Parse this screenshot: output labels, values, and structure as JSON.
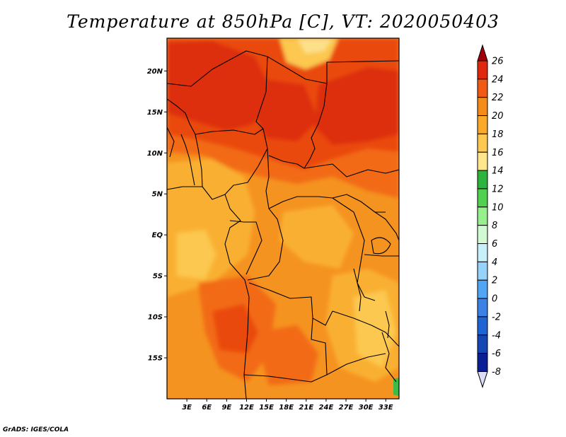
{
  "title": "Temperature at 850hPa [C], VT: 2020050403",
  "credit": "GrADS: IGES/COLA",
  "map": {
    "variable": "Temperature at 850hPa",
    "units": "C",
    "valid_time": "2020050403",
    "region": "Central Africa",
    "lon_range": [
      0,
      35
    ],
    "lat_range": [
      -20,
      24
    ],
    "lat_ticks": [
      {
        "value": 20,
        "label": "20N"
      },
      {
        "value": 15,
        "label": "15N"
      },
      {
        "value": 10,
        "label": "10N"
      },
      {
        "value": 5,
        "label": "5N"
      },
      {
        "value": 0,
        "label": "EQ"
      },
      {
        "value": -5,
        "label": "5S"
      },
      {
        "value": -10,
        "label": "10S"
      },
      {
        "value": -15,
        "label": "15S"
      }
    ],
    "lon_ticks": [
      {
        "value": 3,
        "label": "3E"
      },
      {
        "value": 6,
        "label": "6E"
      },
      {
        "value": 9,
        "label": "9E"
      },
      {
        "value": 12,
        "label": "12E"
      },
      {
        "value": 15,
        "label": "15E"
      },
      {
        "value": 18,
        "label": "18E"
      },
      {
        "value": 21,
        "label": "21E"
      },
      {
        "value": 24,
        "label": "24E"
      },
      {
        "value": 27,
        "label": "27E"
      },
      {
        "value": 30,
        "label": "30E"
      },
      {
        "value": 33,
        "label": "33E"
      }
    ]
  },
  "colorbar": {
    "min_label": "-8",
    "max_label": "26",
    "levels": [
      {
        "label": "26",
        "color": "#a0000a"
      },
      {
        "label": "24",
        "color": "#e1280f"
      },
      {
        "label": "22",
        "color": "#f05a14"
      },
      {
        "label": "20",
        "color": "#f58c19"
      },
      {
        "label": "18",
        "color": "#faaa28"
      },
      {
        "label": "16",
        "color": "#ffc850"
      },
      {
        "label": "14",
        "color": "#ffe68c"
      },
      {
        "label": "12",
        "color": "#2db43c"
      },
      {
        "label": "10",
        "color": "#50d250"
      },
      {
        "label": "8",
        "color": "#96f08c"
      },
      {
        "label": "6",
        "color": "#d2fad2"
      },
      {
        "label": "4",
        "color": "#c8f0fa"
      },
      {
        "label": "2",
        "color": "#96d2fa"
      },
      {
        "label": "0",
        "color": "#50a5f5"
      },
      {
        "label": "-2",
        "color": "#3c82e6"
      },
      {
        "label": "-4",
        "color": "#1e64d2"
      },
      {
        "label": "-6",
        "color": "#1446b4"
      },
      {
        "label": "-8",
        "color": "#0a1e96"
      }
    ],
    "below_color": "#dcdcf5"
  },
  "palette": {
    "t26": "#dd2e0c",
    "t24": "#ea4a10",
    "t22": "#f26a16",
    "t20": "#f59320",
    "t18": "#f9b032",
    "t16": "#fcc850",
    "t14": "#fde08a",
    "t12": "#3dbb48"
  }
}
